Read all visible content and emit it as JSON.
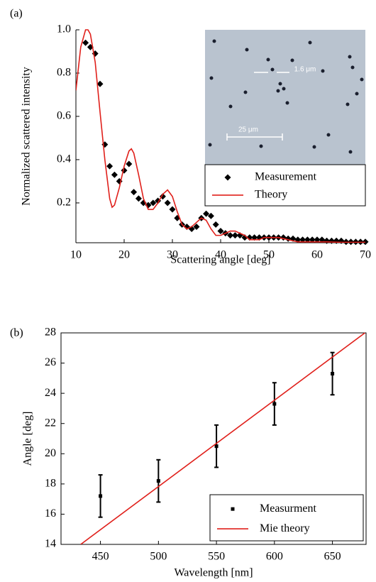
{
  "chart_data": [
    {
      "type": "scatter",
      "panel_label": "(a)",
      "x_label": "Scattering angle [deg]",
      "y_label": "Normalized scattered intensity",
      "xlim": [
        10,
        70
      ],
      "xticks": [
        10,
        20,
        30,
        40,
        50,
        60,
        70
      ],
      "ylim": [
        0.016,
        1.0
      ],
      "yticks": [
        0.2,
        0.4,
        0.6,
        0.8,
        {
          "value": 1.0,
          "label": "1.0"
        }
      ],
      "frame": false,
      "legend": "upper right",
      "annotations": [
        "1.6 μm",
        "25 μm"
      ],
      "series": [
        {
          "name": "Measurement",
          "style": "markers",
          "marker": "diamond",
          "color": "#000000",
          "x": [
            12,
            13,
            14,
            15,
            16,
            17,
            18,
            19,
            20,
            21,
            22,
            23,
            24,
            25,
            26,
            27,
            28,
            29,
            30,
            31,
            32,
            33,
            34,
            35,
            36,
            37,
            38,
            39,
            40,
            41,
            42,
            43,
            44,
            45,
            46,
            47,
            48,
            49,
            50,
            51,
            52,
            53,
            54,
            55,
            56,
            57,
            58,
            59,
            60,
            61,
            62,
            63,
            64,
            65,
            66,
            67,
            68,
            69,
            70
          ],
          "values": [
            0.94,
            0.92,
            0.89,
            0.75,
            0.47,
            0.37,
            0.33,
            0.3,
            0.35,
            0.38,
            0.25,
            0.22,
            0.2,
            0.19,
            0.2,
            0.21,
            0.23,
            0.2,
            0.17,
            0.13,
            0.1,
            0.09,
            0.08,
            0.09,
            0.13,
            0.15,
            0.14,
            0.1,
            0.07,
            0.06,
            0.05,
            0.05,
            0.05,
            0.04,
            0.04,
            0.04,
            0.04,
            0.04,
            0.04,
            0.04,
            0.04,
            0.04,
            0.035,
            0.035,
            0.03,
            0.03,
            0.03,
            0.03,
            0.03,
            0.03,
            0.025,
            0.025,
            0.025,
            0.025,
            0.02,
            0.02,
            0.02,
            0.02,
            0.02
          ]
        },
        {
          "name": "Theory",
          "style": "line",
          "color": "#e0201b",
          "x": [
            10,
            11,
            12,
            12.5,
            13,
            14,
            15,
            16,
            17,
            17.5,
            18,
            19,
            20,
            21,
            21.5,
            22,
            23,
            24,
            25,
            26,
            27,
            28,
            29,
            30,
            31,
            32,
            33,
            34,
            35,
            36,
            37,
            38,
            39,
            40,
            41,
            42,
            43,
            44,
            45,
            46,
            47,
            48,
            49,
            50,
            51,
            52,
            53,
            54,
            55,
            56,
            57,
            58,
            60,
            62,
            65,
            70
          ],
          "values": [
            0.72,
            0.92,
            1.0,
            1.0,
            0.98,
            0.85,
            0.62,
            0.4,
            0.22,
            0.18,
            0.19,
            0.27,
            0.37,
            0.44,
            0.45,
            0.43,
            0.33,
            0.22,
            0.17,
            0.17,
            0.2,
            0.24,
            0.26,
            0.23,
            0.16,
            0.1,
            0.08,
            0.09,
            0.11,
            0.13,
            0.12,
            0.08,
            0.05,
            0.05,
            0.06,
            0.07,
            0.07,
            0.06,
            0.05,
            0.03,
            0.03,
            0.03,
            0.04,
            0.04,
            0.04,
            0.04,
            0.035,
            0.03,
            0.025,
            0.02,
            0.02,
            0.02,
            0.02,
            0.02,
            0.018,
            0.018
          ]
        }
      ]
    },
    {
      "type": "scatter",
      "panel_label": "(b)",
      "x_label": "Wavelength [nm]",
      "y_label": "Angle [deg]",
      "xlim": [
        416,
        679
      ],
      "xticks": [
        450,
        500,
        550,
        600,
        650
      ],
      "ylim": [
        14,
        28
      ],
      "yticks": [
        14,
        16,
        18,
        20,
        22,
        24,
        26,
        28
      ],
      "frame": true,
      "legend": "lower right",
      "series": [
        {
          "name": "Measurment",
          "style": "markers",
          "marker": "square",
          "color": "#000000",
          "x": [
            450,
            500,
            550,
            600,
            650
          ],
          "values": [
            17.2,
            18.2,
            20.5,
            23.3,
            25.3
          ],
          "errors": [
            1.4,
            1.4,
            1.4,
            1.4,
            1.4
          ]
        },
        {
          "name": "Mie theory",
          "style": "line",
          "color": "#e0201b",
          "x": [
            433,
            678
          ],
          "values": [
            14,
            28
          ]
        }
      ]
    }
  ]
}
